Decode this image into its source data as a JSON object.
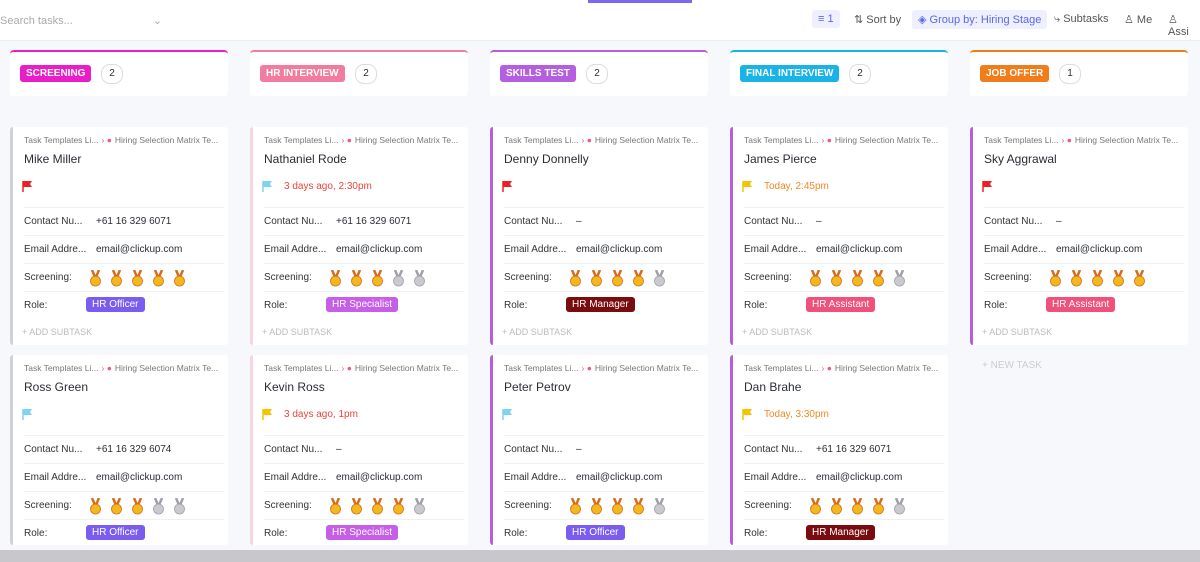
{
  "toolbar": {
    "search_placeholder": "Search tasks...",
    "filter_count": "1",
    "sort": "Sort by",
    "group": "Group by: Hiring Stage",
    "subtasks": "Subtasks",
    "me": "Me",
    "assignees": "Assi"
  },
  "labels": {
    "breadcrumb_1": "Task Templates Li...",
    "breadcrumb_2": "Hiring Selection Matrix Te...",
    "contact": "Contact Nu...",
    "email": "Email Addre...",
    "screening": "Screening:",
    "role": "Role:",
    "add_subtask": "+ ADD SUBTASK",
    "new_task": "+ NEW TASK"
  },
  "columns": [
    {
      "name": "SCREENING",
      "count": "2",
      "color": "#e91ec8",
      "accent": "#d0d0d8",
      "cards": [
        {
          "name": "Mike Miller",
          "flag": "#e8202a",
          "date": null,
          "contact": "+61 16 329 6071",
          "email": "email@clickup.com",
          "screening": 5,
          "screening_max": 5,
          "role": "HR Officer",
          "role_color": "#7b5cf0"
        },
        {
          "name": "Ross Green",
          "flag": "#7fd3f0",
          "date": null,
          "contact": "+61 16 329 6074",
          "email": "email@clickup.com",
          "screening": 3,
          "screening_max": 5,
          "role": "HR Officer",
          "role_color": "#7b5cf0"
        }
      ]
    },
    {
      "name": "HR INTERVIEW",
      "count": "2",
      "color": "#f27ba0",
      "accent": "#f5d5df",
      "cards": [
        {
          "name": "Nathaniel Rode",
          "flag": "#7fd3f0",
          "date": "3 days ago, 2:30pm",
          "date_color": "#e8453c",
          "contact": "+61 16 329 6071",
          "email": "email@clickup.com",
          "screening": 3,
          "screening_max": 5,
          "role": "HR Specialist",
          "role_color": "#c65ee8"
        },
        {
          "name": "Kevin Ross",
          "flag": "#f5c400",
          "date": "3 days ago, 1pm",
          "date_color": "#e8453c",
          "contact": "–",
          "email": "email@clickup.com",
          "screening": 4,
          "screening_max": 5,
          "role": "HR Specialist",
          "role_color": "#c65ee8"
        }
      ]
    },
    {
      "name": "SKILLS TEST",
      "count": "2",
      "color": "#b45fe0",
      "accent": "#b45fe0",
      "cards": [
        {
          "name": "Denny Donnelly",
          "flag": "#e8202a",
          "date": null,
          "contact": "–",
          "email": "email@clickup.com",
          "screening": 4,
          "screening_max": 5,
          "role": "HR Manager",
          "role_color": "#7a0c10"
        },
        {
          "name": "Peter Petrov",
          "flag": "#7fd3f0",
          "date": null,
          "contact": "–",
          "email": "email@clickup.com",
          "screening": 4,
          "screening_max": 5,
          "role": "HR Officer",
          "role_color": "#7b5cf0"
        }
      ]
    },
    {
      "name": "FINAL INTERVIEW",
      "count": "2",
      "color": "#1ab3e6",
      "accent": "#b45fe0",
      "cards": [
        {
          "name": "James Pierce",
          "flag": "#f5c400",
          "date": "Today, 2:45pm",
          "date_color": "#f08a24",
          "contact": "–",
          "email": "email@clickup.com",
          "screening": 4,
          "screening_max": 5,
          "role": "HR Assistant",
          "role_color": "#f0507a"
        },
        {
          "name": "Dan Brahe",
          "flag": "#f5c400",
          "date": "Today, 3:30pm",
          "date_color": "#f08a24",
          "contact": "+61 16 329 6071",
          "email": "email@clickup.com",
          "screening": 4,
          "screening_max": 5,
          "role": "HR Manager",
          "role_color": "#7a0c10"
        }
      ]
    },
    {
      "name": "JOB OFFER",
      "count": "1",
      "color": "#f07d1a",
      "accent": "#b45fe0",
      "cards": [
        {
          "name": "Sky Aggrawal",
          "flag": "#e8202a",
          "date": null,
          "contact": "–",
          "email": "email@clickup.com",
          "screening": 5,
          "screening_max": 5,
          "role": "HR Assistant",
          "role_color": "#f0507a"
        }
      ]
    }
  ]
}
